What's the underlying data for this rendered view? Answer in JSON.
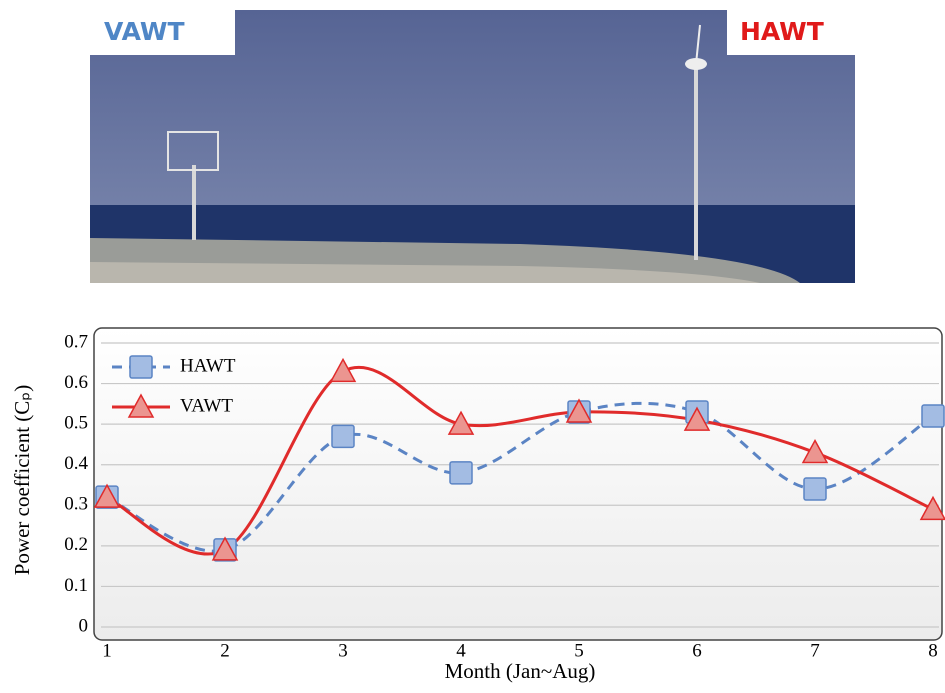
{
  "photo": {
    "left_label": "VAWT",
    "right_label": "HAWT"
  },
  "chart_data": {
    "type": "line",
    "x": [
      1,
      2,
      3,
      4,
      5,
      6,
      7,
      8
    ],
    "xlim": [
      1,
      8
    ],
    "xticks": [
      1,
      2,
      3,
      4,
      5,
      6,
      7,
      8
    ],
    "ylim": [
      0,
      0.7
    ],
    "yticks": [
      0,
      0.1,
      0.2,
      0.3,
      0.4,
      0.5,
      0.6,
      0.7
    ],
    "xlabel": "Month (Jan~Aug)",
    "ylabel": "Power coefficient (Cₚ)",
    "grid": true,
    "legend": "top-left",
    "smooth": true,
    "series": [
      {
        "name": "HAWT",
        "color": "#5b84c4",
        "marker_color": "#a3bce3",
        "line_style": "dashed",
        "marker": "square",
        "values": [
          0.32,
          0.19,
          0.47,
          0.38,
          0.53,
          0.53,
          0.34,
          0.52
        ]
      },
      {
        "name": "VAWT",
        "color": "#e02b2b",
        "marker_color": "#eb9590",
        "line_style": "solid",
        "marker": "triangle",
        "values": [
          0.32,
          0.19,
          0.63,
          0.5,
          0.53,
          0.51,
          0.43,
          0.29
        ]
      }
    ]
  }
}
